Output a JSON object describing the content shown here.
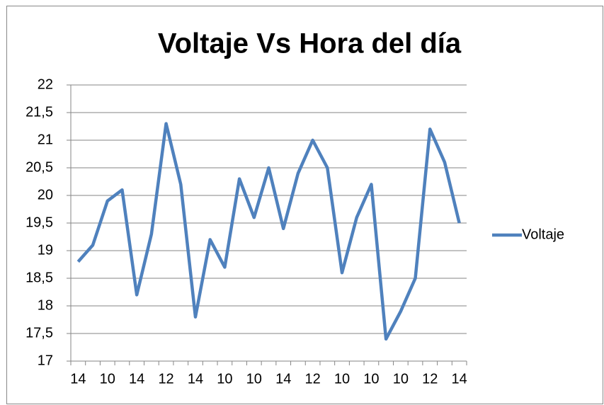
{
  "chart_data": {
    "type": "line",
    "title": "Voltaje Vs Hora del día",
    "categories": [
      "14",
      null,
      "10",
      null,
      "14",
      null,
      "12",
      null,
      "14",
      null,
      "10",
      null,
      "10",
      null,
      "14",
      null,
      "12",
      null,
      "10",
      null,
      "10",
      null,
      "10",
      null,
      "12",
      null,
      "14"
    ],
    "series": [
      {
        "name": "Voltaje",
        "color": "#4f81bd",
        "values": [
          18.8,
          19.1,
          19.9,
          20.1,
          18.2,
          19.3,
          21.3,
          20.2,
          17.8,
          19.2,
          18.7,
          20.3,
          19.6,
          20.5,
          19.4,
          20.4,
          21.0,
          20.5,
          18.6,
          19.6,
          20.2,
          17.4,
          17.9,
          18.5,
          21.2,
          20.6,
          19.5
        ]
      }
    ],
    "ylim": [
      17,
      22
    ],
    "yticks": [
      17,
      {
        "value": 17.5,
        "label": "17,5"
      },
      18,
      {
        "value": 18.5,
        "label": "18,5"
      },
      19,
      {
        "value": 19.5,
        "label": "19,5"
      },
      20,
      {
        "value": 20.5,
        "label": "20,5"
      },
      21,
      {
        "value": 21.5,
        "label": "21,5"
      },
      22
    ],
    "grid": true,
    "legend": "right"
  }
}
